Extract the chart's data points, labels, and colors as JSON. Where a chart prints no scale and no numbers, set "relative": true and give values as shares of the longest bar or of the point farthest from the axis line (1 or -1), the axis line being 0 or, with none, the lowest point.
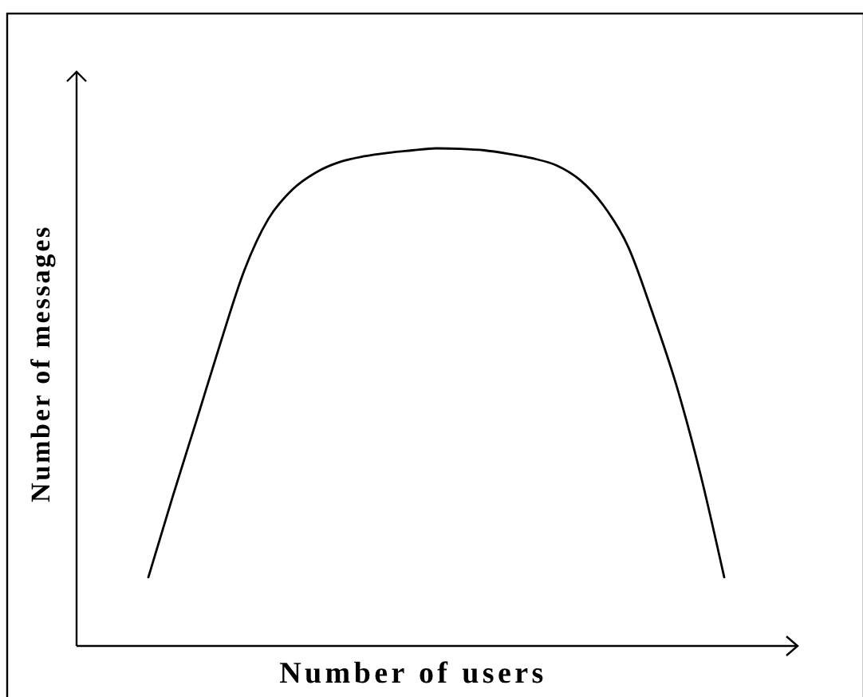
{
  "chart_data": {
    "type": "line",
    "relative": true,
    "xlabel": "Number of users",
    "ylabel": "Number of messages",
    "categories": [
      null,
      null,
      null,
      null,
      null,
      null,
      null,
      null,
      null,
      null,
      null,
      null,
      null,
      null,
      null,
      null,
      null,
      null,
      null,
      null,
      null,
      null,
      null,
      null,
      null
    ],
    "values": [
      0.138,
      0.298,
      0.452,
      0.608,
      0.755,
      0.858,
      0.917,
      0.952,
      0.973,
      0.984,
      0.991,
      0.996,
      1.0,
      0.999,
      0.996,
      0.989,
      0.98,
      0.966,
      0.936,
      0.883,
      0.802,
      0.671,
      0.525,
      0.347,
      0.138
    ],
    "color": "#000000"
  }
}
